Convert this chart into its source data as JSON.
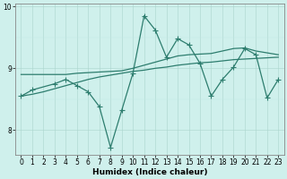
{
  "xlabel": "Humidex (Indice chaleur)",
  "x": [
    0,
    1,
    2,
    3,
    4,
    5,
    6,
    7,
    8,
    9,
    10,
    11,
    12,
    13,
    14,
    15,
    16,
    17,
    18,
    19,
    20,
    21,
    22,
    23
  ],
  "series_volatile": [
    8.55,
    8.65,
    null,
    8.75,
    8.82,
    8.72,
    8.62,
    8.38,
    7.72,
    8.32,
    8.92,
    9.85,
    9.62,
    9.18,
    9.48,
    9.38,
    9.08,
    8.55,
    8.82,
    9.02,
    9.32,
    9.22,
    8.52,
    8.82
  ],
  "series_flat": [
    8.9,
    8.9,
    8.9,
    8.9,
    8.9,
    8.92,
    8.93,
    8.94,
    8.95,
    8.96,
    9.0,
    9.05,
    9.1,
    9.15,
    9.2,
    9.22,
    9.23,
    9.24,
    9.28,
    9.32,
    9.33,
    9.28,
    9.25,
    9.22
  ],
  "series_rising": [
    8.55,
    8.58,
    8.62,
    8.67,
    8.72,
    8.77,
    8.82,
    8.86,
    8.89,
    8.92,
    8.95,
    8.97,
    9.0,
    9.02,
    9.05,
    9.07,
    9.09,
    9.1,
    9.12,
    9.14,
    9.15,
    9.16,
    9.17,
    9.18
  ],
  "line_color": "#2d7d6e",
  "bg_color": "#cff0ec",
  "grid_color_major": "#aad4cc",
  "grid_color_minor": "#c5e8e4",
  "ylim": [
    7.6,
    10.05
  ],
  "xlim": [
    -0.5,
    23.5
  ],
  "yticks": [
    8,
    9,
    10
  ],
  "xticks": [
    0,
    1,
    2,
    3,
    4,
    5,
    6,
    7,
    8,
    9,
    10,
    11,
    12,
    13,
    14,
    15,
    16,
    17,
    18,
    19,
    20,
    21,
    22,
    23
  ],
  "marker": "+",
  "markersize": 4.0,
  "linewidth": 0.9,
  "xlabel_fontsize": 6.5,
  "tick_fontsize": 5.5
}
